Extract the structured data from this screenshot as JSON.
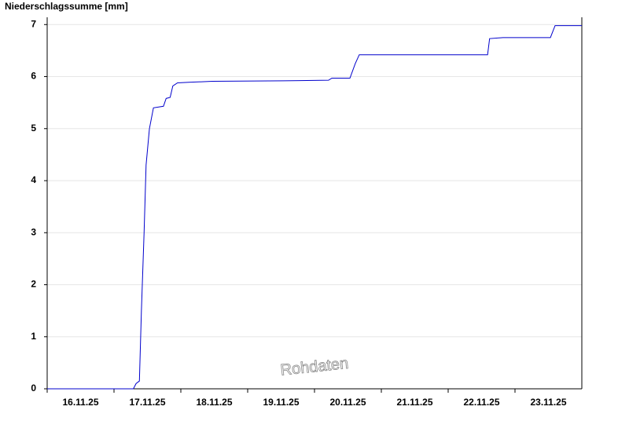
{
  "chart_data": {
    "type": "line",
    "title": "Niederschlagssumme [mm]",
    "annotation": "Rohdaten",
    "x": [
      0,
      1.29,
      1.33,
      1.38,
      1.41,
      1.45,
      1.48,
      1.53,
      1.59,
      1.74,
      1.78,
      1.84,
      1.88,
      1.95,
      2.12,
      2.47,
      3.53,
      4.21,
      4.26,
      4.53,
      4.61,
      4.67,
      6.59,
      6.62,
      6.82,
      7.53,
      7.6,
      8.0
    ],
    "series": [
      {
        "name": "Niederschlagssumme",
        "color": "#0000cc",
        "values": [
          0,
          0,
          0.1,
          0.15,
          1.5,
          3,
          4.3,
          5.0,
          5.4,
          5.43,
          5.58,
          5.6,
          5.82,
          5.88,
          5.89,
          5.91,
          5.92,
          5.93,
          5.97,
          5.97,
          6.25,
          6.42,
          6.42,
          6.73,
          6.75,
          6.75,
          6.98,
          6.98
        ]
      }
    ],
    "xlim": [
      0,
      8
    ],
    "xticks": [
      {
        "value": 0,
        "label": "16.11.25"
      },
      {
        "value": 1,
        "label": "17.11.25"
      },
      {
        "value": 2,
        "label": "18.11.25"
      },
      {
        "value": 3,
        "label": "19.11.25"
      },
      {
        "value": 4,
        "label": "20.11.25"
      },
      {
        "value": 5,
        "label": "21.11.25"
      },
      {
        "value": 6,
        "label": "22.11.25"
      },
      {
        "value": 7,
        "label": "23.11.25"
      }
    ],
    "ylim": [
      0,
      7.14
    ],
    "yticks": [
      0,
      1,
      2,
      3,
      4,
      5,
      6,
      7
    ],
    "grid": true
  }
}
